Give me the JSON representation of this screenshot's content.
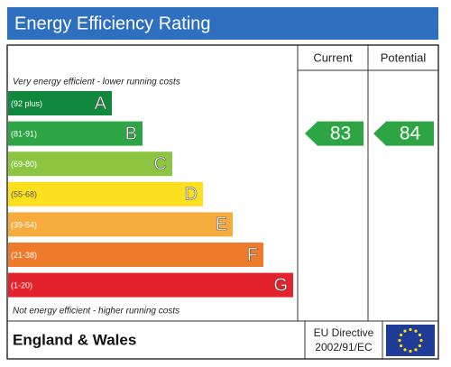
{
  "header": {
    "title": "Energy Efficiency Rating"
  },
  "columns": {
    "current": "Current",
    "potential": "Potential"
  },
  "top_note": "Very energy efficient - lower running costs",
  "bottom_note": "Not energy efficient - higher running costs",
  "bands": [
    {
      "range": "(92 plus)",
      "letter": "A",
      "color": "#10893d"
    },
    {
      "range": "(81-91)",
      "letter": "B",
      "color": "#2da544"
    },
    {
      "range": "(69-80)",
      "letter": "C",
      "color": "#8cc640"
    },
    {
      "range": "(55-68)",
      "letter": "D",
      "color": "#fde01d"
    },
    {
      "range": "(39-54)",
      "letter": "E",
      "color": "#f6ac3d"
    },
    {
      "range": "(21-38)",
      "letter": "F",
      "color": "#ee7b2b"
    },
    {
      "range": "(1-20)",
      "letter": "G",
      "color": "#e4222c"
    }
  ],
  "current": {
    "value": "83",
    "band": 1
  },
  "potential": {
    "value": "84",
    "band": 1
  },
  "footer": {
    "region": "England & Wales",
    "directive": "EU Directive",
    "directive_code": "2002/91/EC"
  }
}
